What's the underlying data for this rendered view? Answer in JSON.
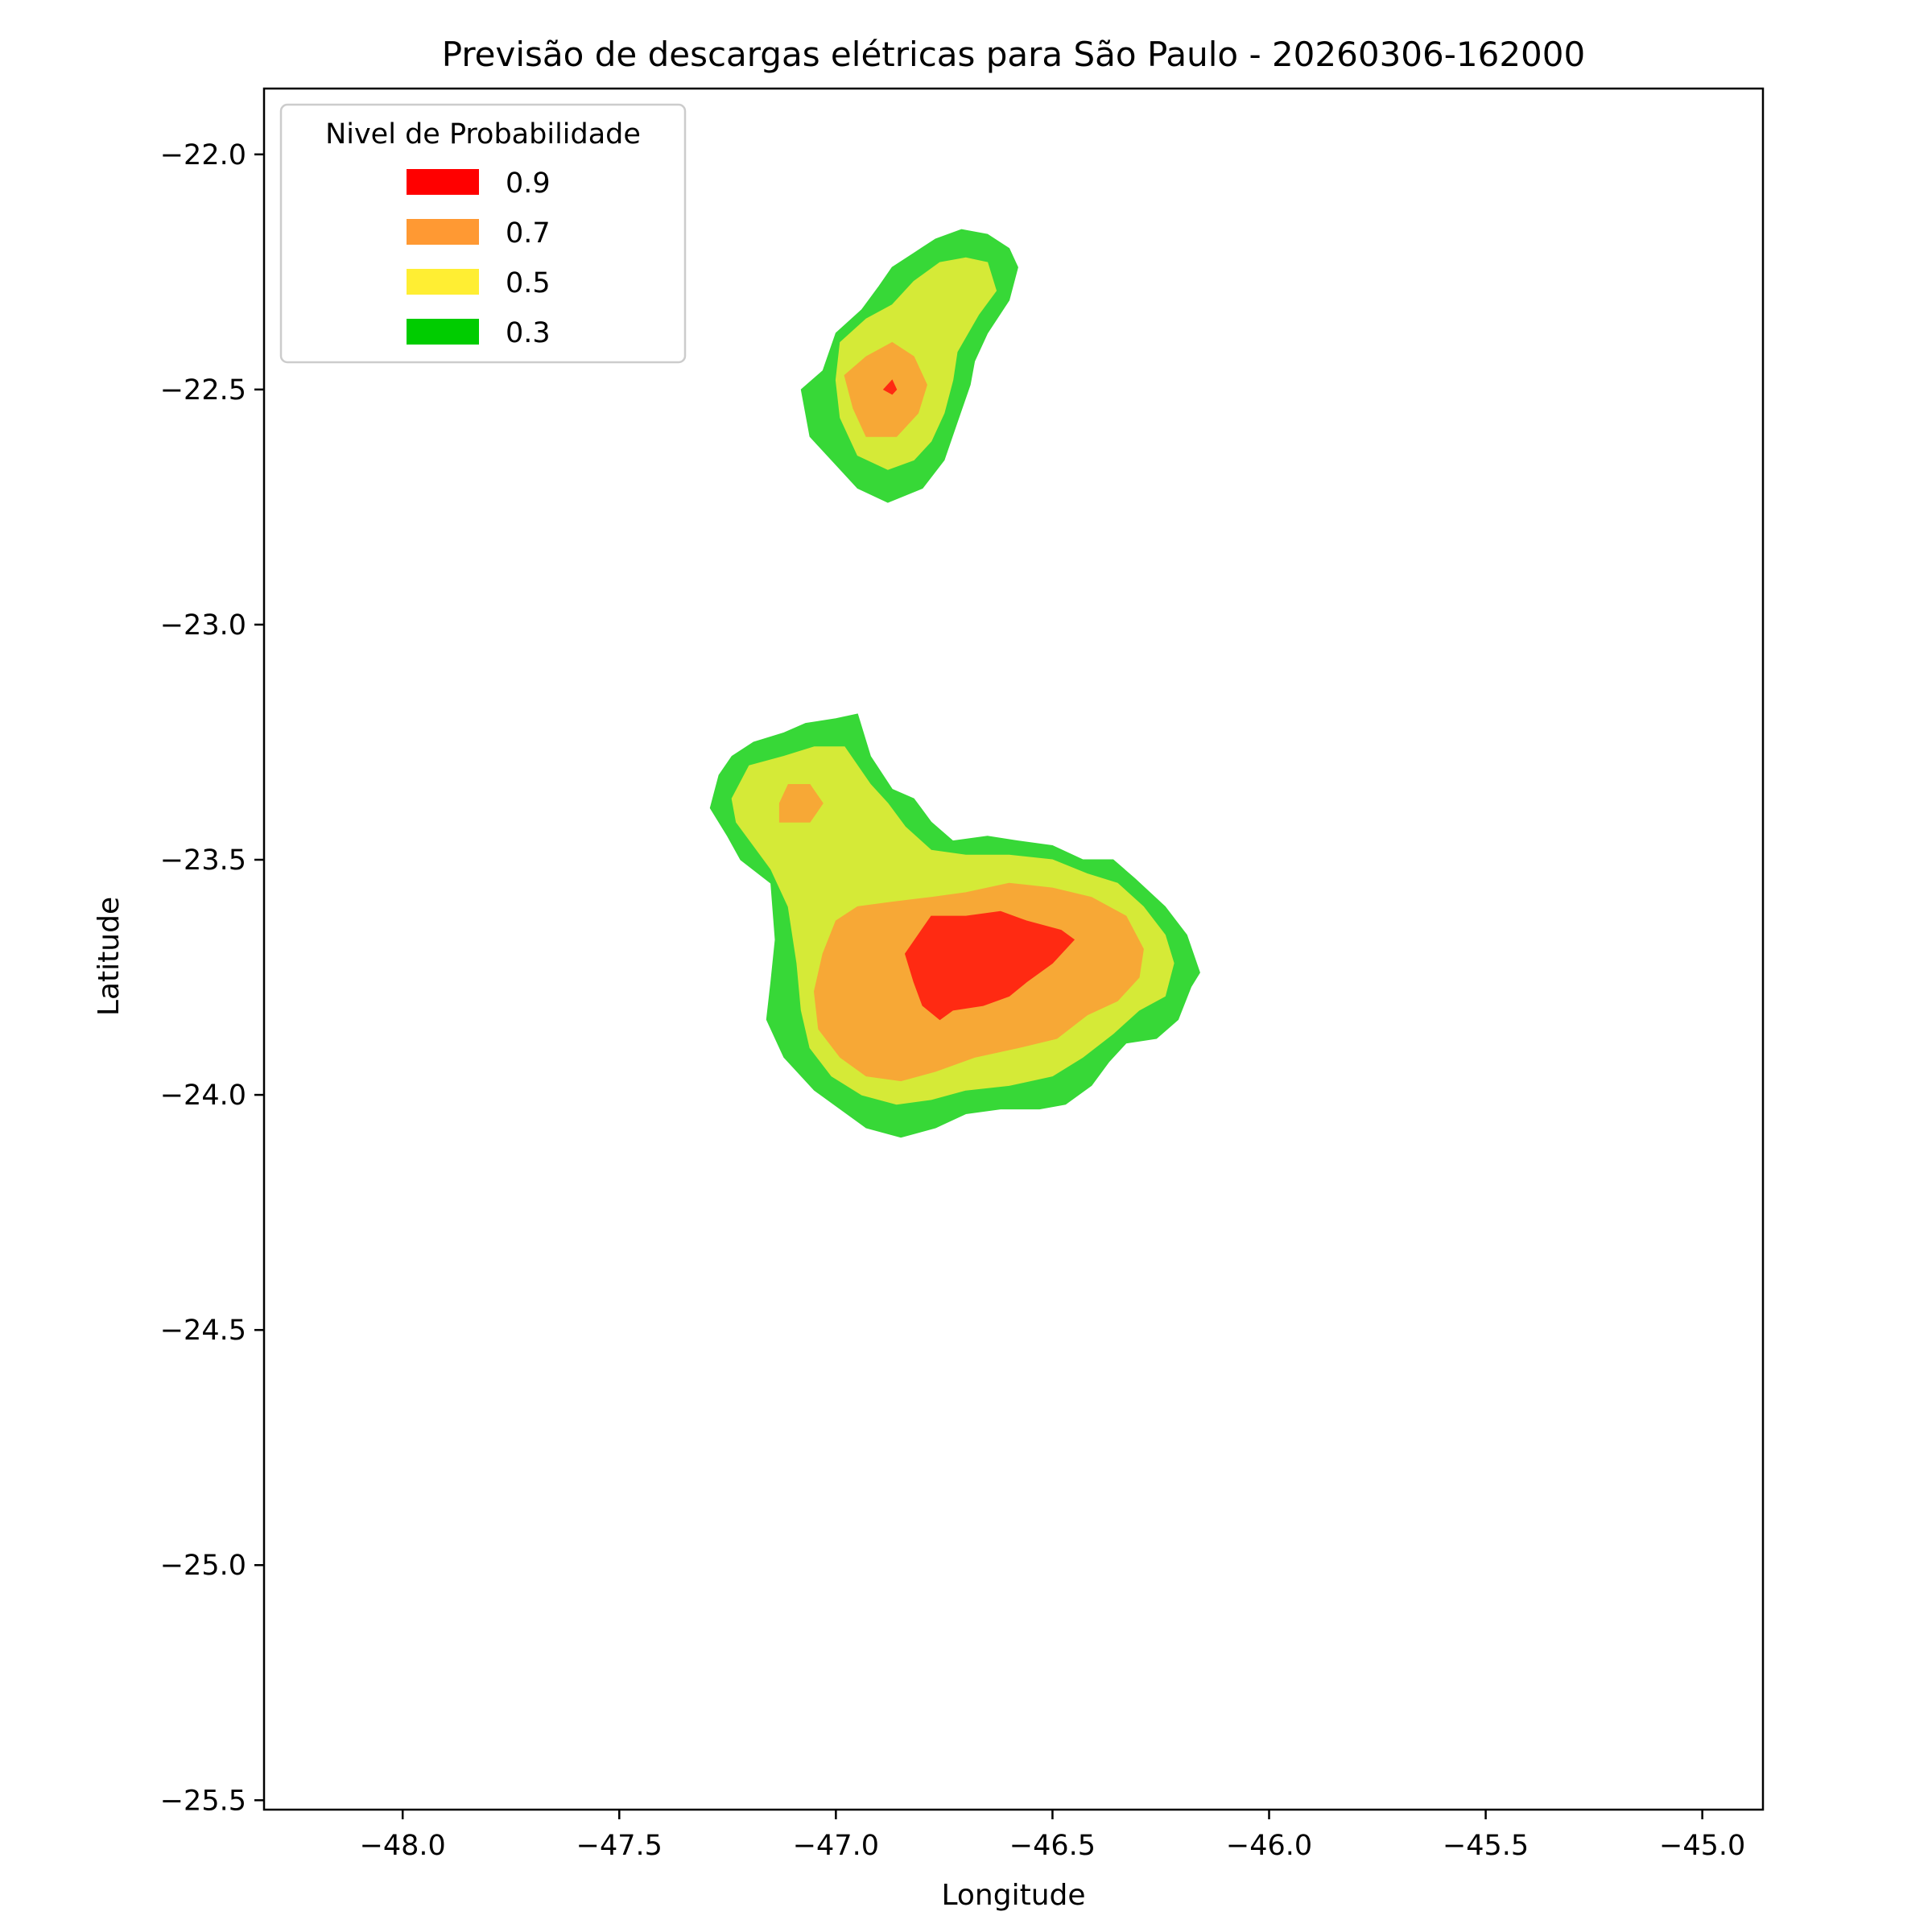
{
  "chart_data": {
    "type": "heatmap",
    "title": "Previsão de descargas elétricas para São Paulo - 20260306-162000",
    "xlabel": "Longitude",
    "ylabel": "Latitude",
    "xlim": [
      -48.32,
      -44.86
    ],
    "ylim": [
      -25.52,
      -21.86
    ],
    "xticks": [
      -48.0,
      -47.5,
      -47.0,
      -46.5,
      -46.0,
      -45.5,
      -45.0
    ],
    "xtick_labels": [
      "−48.0",
      "−47.5",
      "−47.0",
      "−46.5",
      "−46.0",
      "−45.5",
      "−45.0"
    ],
    "yticks": [
      -22.0,
      -22.5,
      -23.0,
      -23.5,
      -24.0,
      -24.5,
      -25.0,
      -25.5
    ],
    "ytick_labels": [
      "−22.0",
      "−22.5",
      "−23.0",
      "−23.5",
      "−24.0",
      "−24.5",
      "−25.0",
      "−25.5"
    ],
    "grid": false,
    "legend": {
      "title": "Nivel de Probabilidade",
      "placement": "upper-left",
      "entries": [
        {
          "label": "0.9",
          "color": "#ff0000"
        },
        {
          "label": "0.7",
          "color": "#ff9933"
        },
        {
          "label": "0.5",
          "color": "#ffee33"
        },
        {
          "label": "0.3",
          "color": "#00cc00"
        }
      ]
    },
    "contour_colors": {
      "0.3": "#37d837",
      "0.5": "#d5ea37",
      "0.7": "#f7a836",
      "0.9": "#ff2a12"
    },
    "regions": [
      {
        "name": "northern-cell",
        "levels": [
          {
            "level": "0.3",
            "polygon": [
              [
                -46.87,
                -22.24
              ],
              [
                -46.82,
                -22.21
              ],
              [
                -46.77,
                -22.18
              ],
              [
                -46.71,
                -22.16
              ],
              [
                -46.65,
                -22.17
              ],
              [
                -46.6,
                -22.2
              ],
              [
                -46.58,
                -22.24
              ],
              [
                -46.6,
                -22.31
              ],
              [
                -46.65,
                -22.38
              ],
              [
                -46.68,
                -22.44
              ],
              [
                -46.69,
                -22.49
              ],
              [
                -46.72,
                -22.57
              ],
              [
                -46.75,
                -22.65
              ],
              [
                -46.8,
                -22.71
              ],
              [
                -46.88,
                -22.74
              ],
              [
                -46.95,
                -22.71
              ],
              [
                -47.0,
                -22.66
              ],
              [
                -47.06,
                -22.6
              ],
              [
                -47.08,
                -22.5
              ],
              [
                -47.03,
                -22.46
              ],
              [
                -47.0,
                -22.38
              ],
              [
                -46.94,
                -22.33
              ],
              [
                -46.9,
                -22.28
              ]
            ]
          },
          {
            "level": "0.5",
            "polygon": [
              [
                -46.82,
                -22.27
              ],
              [
                -46.76,
                -22.23
              ],
              [
                -46.7,
                -22.22
              ],
              [
                -46.65,
                -22.23
              ],
              [
                -46.63,
                -22.29
              ],
              [
                -46.67,
                -22.34
              ],
              [
                -46.72,
                -22.42
              ],
              [
                -46.73,
                -22.48
              ],
              [
                -46.75,
                -22.55
              ],
              [
                -46.78,
                -22.61
              ],
              [
                -46.82,
                -22.65
              ],
              [
                -46.88,
                -22.67
              ],
              [
                -46.95,
                -22.64
              ],
              [
                -46.99,
                -22.56
              ],
              [
                -47.0,
                -22.48
              ],
              [
                -46.99,
                -22.4
              ],
              [
                -46.93,
                -22.35
              ],
              [
                -46.87,
                -22.32
              ]
            ]
          },
          {
            "level": "0.7",
            "polygon": [
              [
                -46.87,
                -22.4
              ],
              [
                -46.82,
                -22.43
              ],
              [
                -46.79,
                -22.49
              ],
              [
                -46.81,
                -22.55
              ],
              [
                -46.86,
                -22.6
              ],
              [
                -46.93,
                -22.6
              ],
              [
                -46.96,
                -22.54
              ],
              [
                -46.98,
                -22.47
              ],
              [
                -46.93,
                -22.43
              ]
            ]
          },
          {
            "level": "0.9",
            "polygon": [
              [
                -46.87,
                -22.48
              ],
              [
                -46.86,
                -22.5
              ],
              [
                -46.87,
                -22.51
              ],
              [
                -46.89,
                -22.5
              ]
            ]
          }
        ]
      },
      {
        "name": "southern-cell",
        "levels": [
          {
            "level": "0.3",
            "polygon": [
              [
                -47.0,
                -23.2
              ],
              [
                -46.95,
                -23.19
              ],
              [
                -46.92,
                -23.28
              ],
              [
                -46.87,
                -23.35
              ],
              [
                -46.82,
                -23.37
              ],
              [
                -46.78,
                -23.42
              ],
              [
                -46.73,
                -23.46
              ],
              [
                -46.65,
                -23.45
              ],
              [
                -46.58,
                -23.46
              ],
              [
                -46.5,
                -23.47
              ],
              [
                -46.43,
                -23.5
              ],
              [
                -46.36,
                -23.5
              ],
              [
                -46.31,
                -23.54
              ],
              [
                -46.24,
                -23.6
              ],
              [
                -46.19,
                -23.66
              ],
              [
                -46.16,
                -23.74
              ],
              [
                -46.18,
                -23.77
              ],
              [
                -46.21,
                -23.84
              ],
              [
                -46.26,
                -23.88
              ],
              [
                -46.33,
                -23.89
              ],
              [
                -46.37,
                -23.93
              ],
              [
                -46.41,
                -23.98
              ],
              [
                -46.47,
                -24.02
              ],
              [
                -46.53,
                -24.03
              ],
              [
                -46.62,
                -24.03
              ],
              [
                -46.7,
                -24.04
              ],
              [
                -46.77,
                -24.07
              ],
              [
                -46.85,
                -24.09
              ],
              [
                -46.93,
                -24.07
              ],
              [
                -46.99,
                -24.03
              ],
              [
                -47.05,
                -23.99
              ],
              [
                -47.12,
                -23.92
              ],
              [
                -47.16,
                -23.84
              ],
              [
                -47.15,
                -23.76
              ],
              [
                -47.14,
                -23.67
              ],
              [
                -47.15,
                -23.55
              ],
              [
                -47.22,
                -23.5
              ],
              [
                -47.25,
                -23.45
              ],
              [
                -47.29,
                -23.39
              ],
              [
                -47.27,
                -23.32
              ],
              [
                -47.24,
                -23.28
              ],
              [
                -47.19,
                -23.25
              ],
              [
                -47.12,
                -23.23
              ],
              [
                -47.07,
                -23.21
              ]
            ]
          },
          {
            "level": "0.5",
            "polygon": [
              [
                -47.05,
                -23.26
              ],
              [
                -46.98,
                -23.26
              ],
              [
                -46.92,
                -23.34
              ],
              [
                -46.88,
                -23.38
              ],
              [
                -46.84,
                -23.43
              ],
              [
                -46.78,
                -23.48
              ],
              [
                -46.7,
                -23.49
              ],
              [
                -46.6,
                -23.49
              ],
              [
                -46.5,
                -23.5
              ],
              [
                -46.42,
                -23.53
              ],
              [
                -46.35,
                -23.55
              ],
              [
                -46.29,
                -23.6
              ],
              [
                -46.24,
                -23.66
              ],
              [
                -46.22,
                -23.72
              ],
              [
                -46.24,
                -23.79
              ],
              [
                -46.3,
                -23.82
              ],
              [
                -46.36,
                -23.87
              ],
              [
                -46.43,
                -23.92
              ],
              [
                -46.5,
                -23.96
              ],
              [
                -46.6,
                -23.98
              ],
              [
                -46.7,
                -23.99
              ],
              [
                -46.78,
                -24.01
              ],
              [
                -46.86,
                -24.02
              ],
              [
                -46.94,
                -24.0
              ],
              [
                -47.01,
                -23.96
              ],
              [
                -47.06,
                -23.9
              ],
              [
                -47.08,
                -23.82
              ],
              [
                -47.09,
                -23.72
              ],
              [
                -47.11,
                -23.6
              ],
              [
                -47.15,
                -23.52
              ],
              [
                -47.19,
                -23.47
              ],
              [
                -47.23,
                -23.42
              ],
              [
                -47.24,
                -23.37
              ],
              [
                -47.2,
                -23.3
              ],
              [
                -47.12,
                -23.28
              ]
            ]
          },
          {
            "level": "0.7",
            "polygon": [
              [
                -46.78,
                -23.58
              ],
              [
                -46.7,
                -23.57
              ],
              [
                -46.6,
                -23.55
              ],
              [
                -46.5,
                -23.56
              ],
              [
                -46.41,
                -23.58
              ],
              [
                -46.33,
                -23.62
              ],
              [
                -46.29,
                -23.69
              ],
              [
                -46.3,
                -23.75
              ],
              [
                -46.35,
                -23.8
              ],
              [
                -46.42,
                -23.83
              ],
              [
                -46.49,
                -23.88
              ],
              [
                -46.58,
                -23.9
              ],
              [
                -46.68,
                -23.92
              ],
              [
                -46.77,
                -23.95
              ],
              [
                -46.85,
                -23.97
              ],
              [
                -46.93,
                -23.96
              ],
              [
                -46.99,
                -23.92
              ],
              [
                -47.04,
                -23.86
              ],
              [
                -47.05,
                -23.78
              ],
              [
                -47.03,
                -23.7
              ],
              [
                -47.0,
                -23.63
              ],
              [
                -46.95,
                -23.6
              ],
              [
                -46.87,
                -23.59
              ]
            ]
          },
          {
            "level": "0.7",
            "polygon": [
              [
                -47.11,
                -23.34
              ],
              [
                -47.06,
                -23.34
              ],
              [
                -47.03,
                -23.38
              ],
              [
                -47.06,
                -23.42
              ],
              [
                -47.13,
                -23.42
              ],
              [
                -47.13,
                -23.38
              ]
            ]
          },
          {
            "level": "0.9",
            "polygon": [
              [
                -46.78,
                -23.62
              ],
              [
                -46.7,
                -23.62
              ],
              [
                -46.62,
                -23.61
              ],
              [
                -46.56,
                -23.63
              ],
              [
                -46.48,
                -23.65
              ],
              [
                -46.45,
                -23.67
              ],
              [
                -46.5,
                -23.72
              ],
              [
                -46.56,
                -23.76
              ],
              [
                -46.6,
                -23.79
              ],
              [
                -46.66,
                -23.81
              ],
              [
                -46.73,
                -23.82
              ],
              [
                -46.76,
                -23.84
              ],
              [
                -46.8,
                -23.81
              ],
              [
                -46.82,
                -23.76
              ],
              [
                -46.84,
                -23.7
              ],
              [
                -46.81,
                -23.66
              ]
            ]
          }
        ]
      }
    ]
  }
}
